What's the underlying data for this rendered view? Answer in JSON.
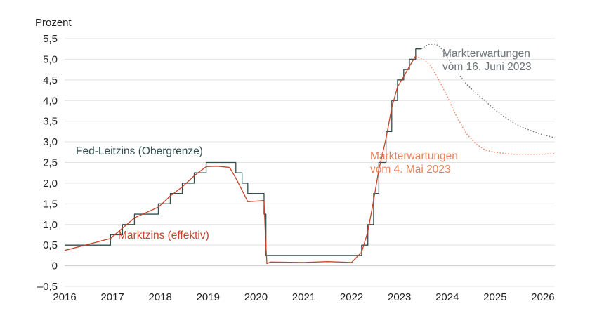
{
  "chart_data": {
    "type": "line",
    "ylabel": "Prozent",
    "ylim": [
      -0.5,
      5.5
    ],
    "xlim": [
      2016.0,
      2026.25
    ],
    "y_ticks": [
      -0.5,
      0,
      0.5,
      1.0,
      1.5,
      2.0,
      2.5,
      3.0,
      3.5,
      4.0,
      4.5,
      5.0,
      5.5
    ],
    "y_tick_labels": [
      "–0,5",
      "0",
      "0,5",
      "1,0",
      "1,5",
      "2,0",
      "2,5",
      "3,0",
      "3,5",
      "4,0",
      "4,5",
      "5,0",
      "5,5"
    ],
    "x_ticks": [
      2016,
      2017,
      2018,
      2019,
      2020,
      2021,
      2022,
      2023,
      2024,
      2025,
      2026
    ],
    "x_tick_labels": [
      "2016",
      "2017",
      "2018",
      "2019",
      "2020",
      "2021",
      "2022",
      "2023",
      "2024",
      "2025",
      "2026"
    ],
    "grid": "horizontal",
    "colors": {
      "fed": "#2f4f4f",
      "market": "#c8432a",
      "exp_june": "#6b7478",
      "exp_may": "#e8825a"
    },
    "series": [
      {
        "key": "fed",
        "name": "Fed-Leitzins (Obergrenze)",
        "style": "step",
        "x": [
          2016.0,
          2016.96,
          2017.21,
          2017.46,
          2017.96,
          2018.21,
          2018.46,
          2018.71,
          2018.96,
          2019.58,
          2019.71,
          2019.83,
          2020.17,
          2020.21,
          2022.21,
          2022.34,
          2022.46,
          2022.57,
          2022.72,
          2022.84,
          2022.96,
          2023.09,
          2023.21,
          2023.34,
          2023.46
        ],
        "y": [
          0.5,
          0.75,
          1.0,
          1.25,
          1.5,
          1.75,
          2.0,
          2.25,
          2.5,
          2.25,
          2.0,
          1.75,
          1.25,
          0.25,
          0.5,
          1.0,
          1.75,
          2.5,
          3.25,
          4.0,
          4.5,
          4.75,
          5.0,
          5.25,
          5.25
        ]
      },
      {
        "key": "market",
        "name": "Marktzins (effektiv)",
        "style": "line",
        "x": [
          2016.0,
          2016.96,
          2017.21,
          2017.46,
          2017.96,
          2018.21,
          2018.46,
          2018.71,
          2018.96,
          2019.2,
          2019.45,
          2019.58,
          2019.71,
          2019.83,
          2020.17,
          2020.2,
          2020.23,
          2020.3,
          2021.0,
          2021.5,
          2022.0,
          2022.21,
          2022.34,
          2022.46,
          2022.57,
          2022.72,
          2022.84,
          2022.96,
          2023.09,
          2023.21,
          2023.34
        ],
        "y": [
          0.37,
          0.66,
          0.91,
          1.16,
          1.42,
          1.69,
          1.91,
          2.18,
          2.4,
          2.41,
          2.38,
          2.12,
          1.83,
          1.55,
          1.58,
          0.65,
          0.05,
          0.09,
          0.08,
          0.1,
          0.08,
          0.33,
          0.83,
          1.58,
          2.33,
          3.08,
          3.83,
          4.33,
          4.58,
          4.83,
          5.08
        ]
      },
      {
        "key": "exp_june",
        "name": "Markterwartungen vom 16. Juni 2023",
        "style": "dotted",
        "x": [
          2023.46,
          2023.6,
          2023.75,
          2023.85,
          2024.0,
          2024.2,
          2024.4,
          2024.6,
          2024.8,
          2025.0,
          2025.2,
          2025.4,
          2025.6,
          2025.8,
          2026.0,
          2026.25
        ],
        "y": [
          5.25,
          5.36,
          5.37,
          5.3,
          5.05,
          4.7,
          4.4,
          4.18,
          3.98,
          3.77,
          3.6,
          3.45,
          3.34,
          3.25,
          3.17,
          3.1
        ]
      },
      {
        "key": "exp_may",
        "name": "Markterwartungen vom 4. Mai 2023",
        "style": "dotted",
        "x": [
          2023.34,
          2023.5,
          2023.65,
          2023.8,
          2024.0,
          2024.2,
          2024.4,
          2024.6,
          2024.8,
          2025.0,
          2025.2,
          2025.4,
          2025.6,
          2025.8,
          2026.0,
          2026.25
        ],
        "y": [
          5.08,
          5.0,
          4.85,
          4.55,
          4.1,
          3.6,
          3.2,
          2.95,
          2.8,
          2.75,
          2.72,
          2.7,
          2.7,
          2.7,
          2.7,
          2.72
        ]
      }
    ]
  }
}
